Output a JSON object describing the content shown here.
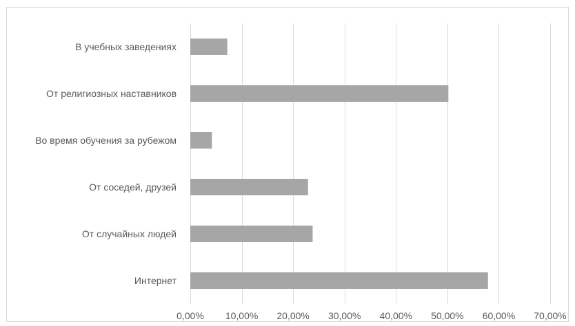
{
  "chart_data": {
    "type": "bar",
    "orientation": "horizontal",
    "categories": [
      "В учебных заведениях",
      "От религиозных наставников",
      "Во время обучения за рубежом",
      "От соседей, друзей",
      "От случайных людей",
      "Интернет"
    ],
    "values": [
      7.2,
      50.2,
      4.2,
      22.9,
      23.8,
      57.9
    ],
    "xlim": [
      0,
      70
    ],
    "xticks": [
      "0,00%",
      "10,00%",
      "20,00%",
      "30,00%",
      "40,00%",
      "50,00%",
      "60,00%",
      "70,00%"
    ],
    "grid": true,
    "legend": "none",
    "bar_color": "#a6a6a6",
    "grid_color": "#d9d9d9",
    "text_color": "#595959"
  }
}
